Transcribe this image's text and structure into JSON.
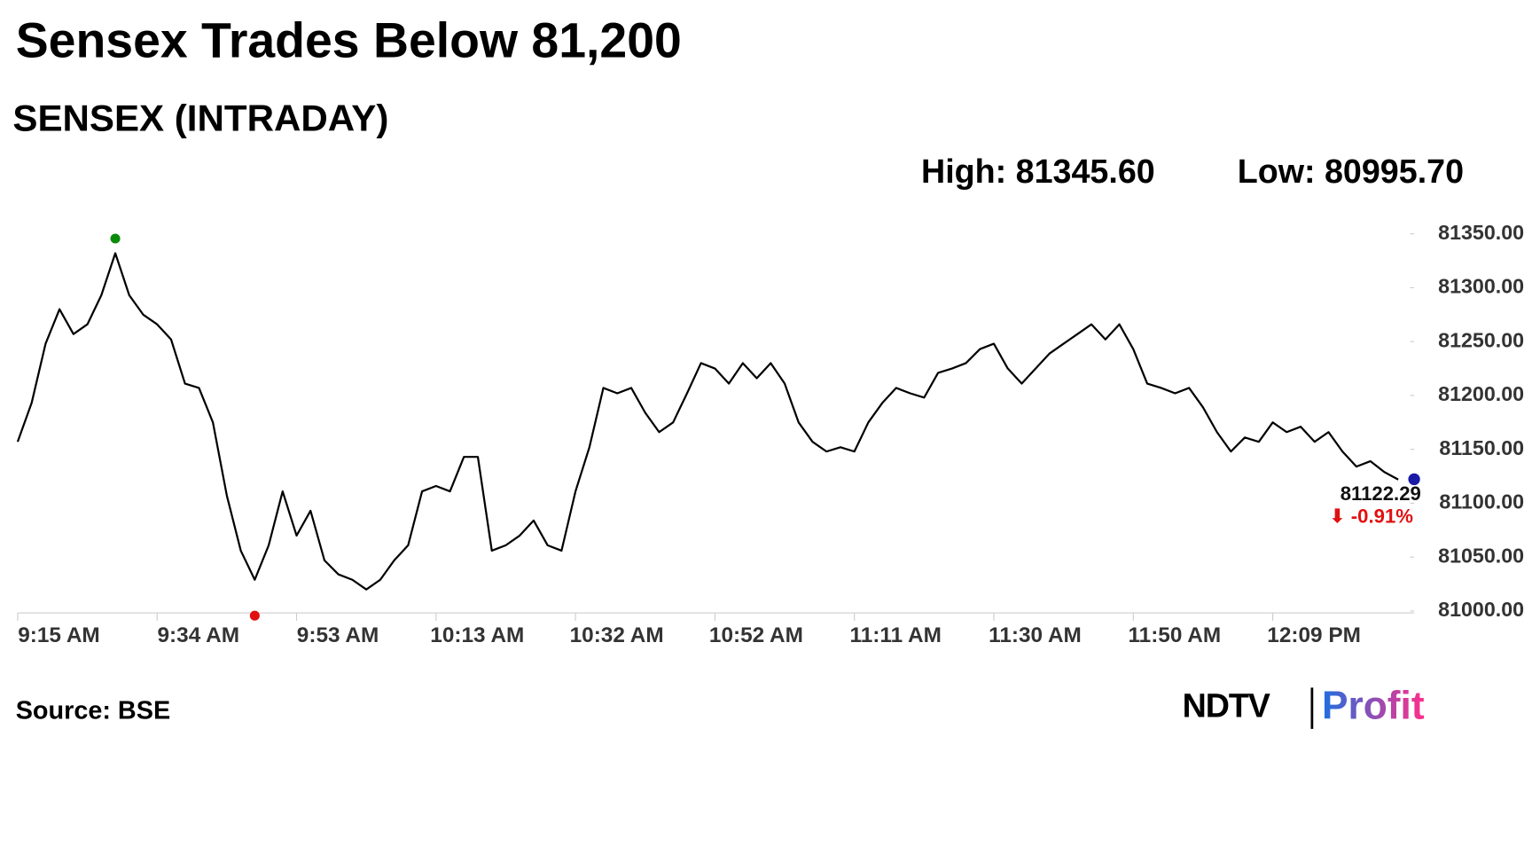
{
  "chart_data": {
    "type": "line",
    "title": "Sensex Trades Below 81,200",
    "subtitle": "SENSEX (INTRADAY)",
    "high": {
      "label": "High: 81345.60",
      "value": 81345.6,
      "index": 7,
      "color": "#0a8a0a"
    },
    "low": {
      "label": "Low: 80995.70",
      "value": 80995.7,
      "index": 17,
      "color": "#e01010"
    },
    "last": {
      "value": 81122.29,
      "label": "81122.29",
      "change": -0.91,
      "change_label": "⬇ -0.91%",
      "color": "#1a1aa8",
      "change_color": "#e01010"
    },
    "source": "Source: BSE",
    "logo": [
      "NDTV",
      "Profit"
    ],
    "categories": [
      "9:15 AM",
      null,
      null,
      null,
      null,
      null,
      null,
      null,
      null,
      null,
      "9:34 AM",
      null,
      null,
      null,
      null,
      null,
      null,
      null,
      null,
      null,
      "9:53 AM",
      null,
      null,
      null,
      null,
      null,
      null,
      null,
      null,
      null,
      "10:13 AM",
      null,
      null,
      null,
      null,
      null,
      null,
      null,
      null,
      null,
      "10:32 AM",
      null,
      null,
      null,
      null,
      null,
      null,
      null,
      null,
      null,
      "10:52 AM",
      null,
      null,
      null,
      null,
      null,
      null,
      null,
      null,
      null,
      "11:11 AM",
      null,
      null,
      null,
      null,
      null,
      null,
      null,
      null,
      null,
      "11:30 AM",
      null,
      null,
      null,
      null,
      null,
      null,
      null,
      null,
      null,
      "11:50 AM",
      null,
      null,
      null,
      null,
      null,
      null,
      null,
      null,
      null,
      "12:09 PM",
      null,
      null,
      null,
      null,
      null,
      null,
      null,
      null,
      null
    ],
    "series": [
      {
        "name": "SENSEX",
        "color": "#000000",
        "values": [
          81157,
          81193,
          81248,
          81280,
          81257,
          81266,
          81293,
          81332,
          81293,
          81275,
          81266,
          81252,
          81211,
          81207,
          81175,
          81107,
          81056,
          81029,
          81061,
          81111,
          81070,
          81093,
          81047,
          81034,
          81029,
          81020,
          81029,
          81047,
          81061,
          81111,
          81116,
          81111,
          81143,
          81143,
          81056,
          81061,
          81070,
          81084,
          81061,
          81056,
          81111,
          81152,
          81207,
          81202,
          81207,
          81184,
          81166,
          81175,
          81202,
          81230,
          81225,
          81211,
          81230,
          81216,
          81230,
          81211,
          81175,
          81157,
          81148,
          81152,
          81148,
          81175,
          81193,
          81207,
          81202,
          81198,
          81221,
          81225,
          81230,
          81243,
          81248,
          81225,
          81211,
          81225,
          81239,
          81248,
          81257,
          81266,
          81252,
          81266,
          81243,
          81211,
          81207,
          81202,
          81207,
          81189,
          81166,
          81148,
          81161,
          81157,
          81175,
          81166,
          81171,
          81157,
          81166,
          81148,
          81134,
          81139,
          81129,
          81122
        ]
      }
    ],
    "ylim": [
      80985,
      81360
    ],
    "yticks": [
      {
        "value": 81000,
        "label": "81000.00"
      },
      {
        "value": 81050,
        "label": "81050.00"
      },
      {
        "value": 81100,
        "label": "81100.00"
      },
      {
        "value": 81150,
        "label": "81150.00"
      },
      {
        "value": 81200,
        "label": "81200.00"
      },
      {
        "value": 81250,
        "label": "81250.00"
      },
      {
        "value": 81300,
        "label": "81300.00"
      },
      {
        "value": 81350,
        "label": "81350.00"
      }
    ]
  }
}
